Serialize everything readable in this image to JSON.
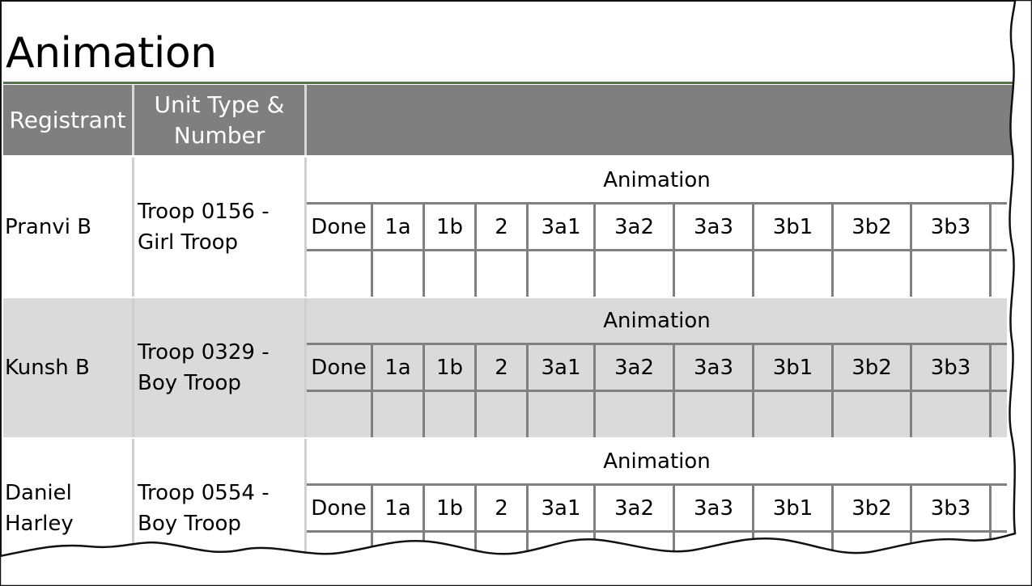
{
  "page": {
    "title": "Animation"
  },
  "table": {
    "headers": [
      "Registrant",
      "Unit Type & Number",
      ""
    ],
    "requirement_title": "Animation",
    "requirement_columns": [
      "Done",
      "1a",
      "1b",
      "2",
      "3a1",
      "3a2",
      "3a3",
      "3b1",
      "3b2",
      "3b3"
    ],
    "rows": [
      {
        "registrant": "Pranvi B",
        "unit": "Troop 0156 - Girl Troop"
      },
      {
        "registrant": "Kunsh B",
        "unit": "Troop 0329 - Boy Troop"
      },
      {
        "registrant": "Daniel Harley",
        "unit": "Troop 0554 - Boy Troop"
      }
    ]
  },
  "colors": {
    "header_bg": "#7f7f7f",
    "alt_row_bg": "#dadada",
    "title_rule": "#4d7a44"
  }
}
